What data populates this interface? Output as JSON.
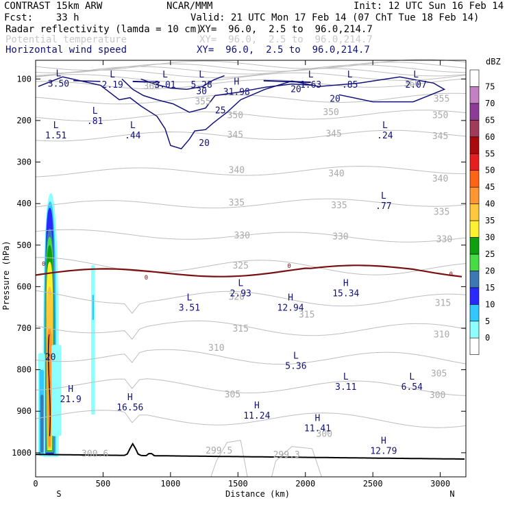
{
  "header": {
    "title_left": "CONTRAST 15km ARW",
    "title_center": "NCAR/MMM",
    "init": "Init: 12 UTC Sun 16 Feb 14",
    "fcst": "Fcst:    33 h",
    "valid": "Valid: 21 UTC Mon 17 Feb 14 (07 ChT Tue 18 Feb 14)",
    "fields": [
      {
        "name": "Radar reflectivity (lamda = 10 cm)",
        "xy": "XY=  96.0,  2.5 to  96.0,214.7",
        "color": "#000000"
      },
      {
        "name": "Potential temperature",
        "xy": "XY=  96.0,  2.5 to  96.0,214.7",
        "color": "#c8c8c8"
      },
      {
        "name": "Horizontal wind speed",
        "xy": "XY=  96.0,  2.5 to  96.0,214.7",
        "color": "#10107a"
      }
    ]
  },
  "chart_data": {
    "type": "cross-section",
    "xlabel": "Distance (km)",
    "ylabel": "Pressure (hPa)",
    "xlim": [
      0,
      3190
    ],
    "ylim": [
      1058,
      55
    ],
    "x_ticks": [
      0,
      500,
      1000,
      1500,
      2000,
      2500,
      3000
    ],
    "y_ticks": [
      100,
      200,
      300,
      400,
      500,
      600,
      700,
      800,
      900,
      1000
    ],
    "end_labels": {
      "left": "S",
      "right": "N"
    },
    "colorbar": {
      "unit": "dBZ",
      "levels": [
        0,
        5,
        10,
        15,
        20,
        25,
        30,
        35,
        40,
        45,
        50,
        55,
        60,
        65,
        70,
        75
      ],
      "colors": [
        "#ffffff",
        "#8cffff",
        "#32c8ff",
        "#2828ff",
        "#3c78b4",
        "#46dc46",
        "#0fa00f",
        "#fff032",
        "#ffc83c",
        "#ff9632",
        "#ff6414",
        "#e61e1e",
        "#aa0a0a",
        "#a03c5a",
        "#8c3c96",
        "#c380c3",
        "#ffffff"
      ]
    },
    "theta_labels": [
      {
        "text": "360",
        "x": 2790,
        "p": 112
      },
      {
        "text": "360",
        "x": 860,
        "p": 118
      },
      {
        "text": "355",
        "x": 1240,
        "p": 155
      },
      {
        "text": "355",
        "x": 3010,
        "p": 148
      },
      {
        "text": "350",
        "x": 1480,
        "p": 188
      },
      {
        "text": "350",
        "x": 2190,
        "p": 180
      },
      {
        "text": "350",
        "x": 3000,
        "p": 188
      },
      {
        "text": "345",
        "x": 1480,
        "p": 235
      },
      {
        "text": "345",
        "x": 2210,
        "p": 232
      },
      {
        "text": "345",
        "x": 3000,
        "p": 238
      },
      {
        "text": "340",
        "x": 1490,
        "p": 320
      },
      {
        "text": "340",
        "x": 2230,
        "p": 328
      },
      {
        "text": "340",
        "x": 3000,
        "p": 340
      },
      {
        "text": "335",
        "x": 1490,
        "p": 398
      },
      {
        "text": "335",
        "x": 2250,
        "p": 405
      },
      {
        "text": "335",
        "x": 3010,
        "p": 420
      },
      {
        "text": "330",
        "x": 1530,
        "p": 477
      },
      {
        "text": "330",
        "x": 2260,
        "p": 480
      },
      {
        "text": "330",
        "x": 3030,
        "p": 486
      },
      {
        "text": "325",
        "x": 1520,
        "p": 550
      },
      {
        "text": "320",
        "x": 1490,
        "p": 625
      },
      {
        "text": "315",
        "x": 2010,
        "p": 668
      },
      {
        "text": "315",
        "x": 1520,
        "p": 702
      },
      {
        "text": "315",
        "x": 3020,
        "p": 640
      },
      {
        "text": "310",
        "x": 1340,
        "p": 748
      },
      {
        "text": "310",
        "x": 3010,
        "p": 716
      },
      {
        "text": "305",
        "x": 1460,
        "p": 860
      },
      {
        "text": "305",
        "x": 2990,
        "p": 810
      },
      {
        "text": "300",
        "x": 2980,
        "p": 862
      },
      {
        "text": "300",
        "x": 2140,
        "p": 955
      },
      {
        "text": "300.6",
        "x": 440,
        "p": 1003
      },
      {
        "text": "299.5",
        "x": 1360,
        "p": 995
      },
      {
        "text": "299.3",
        "x": 1860,
        "p": 1005
      }
    ],
    "wind_labels": [
      {
        "text": "30",
        "x": 1230,
        "p": 130
      },
      {
        "text": "25",
        "x": 1370,
        "p": 176
      },
      {
        "text": "20",
        "x": 1250,
        "p": 255
      },
      {
        "text": "20",
        "x": 1930,
        "p": 125
      },
      {
        "text": "20",
        "x": 2220,
        "p": 148
      },
      {
        "text": "20",
        "x": 110,
        "p": 770
      }
    ],
    "zero_dbz_labels": [
      {
        "text": "0",
        "x": 60,
        "p": 545
      },
      {
        "text": "0",
        "x": 820,
        "p": 578
      },
      {
        "text": "0",
        "x": 1880,
        "p": 550
      },
      {
        "text": "0",
        "x": 3080,
        "p": 570
      }
    ],
    "extrema": [
      {
        "type": "L",
        "value": "3.50",
        "x": 170,
        "p": 100
      },
      {
        "type": "L",
        "value": "2.19",
        "x": 570,
        "p": 103
      },
      {
        "type": "L",
        "value": "3.01",
        "x": 960,
        "p": 103
      },
      {
        "type": "L",
        "value": "5.28",
        "x": 1230,
        "p": 103
      },
      {
        "type": "H",
        "value": "31.98",
        "x": 1490,
        "p": 120
      },
      {
        "type": "L",
        "value": "1.63",
        "x": 2040,
        "p": 103
      },
      {
        "type": "L",
        "value": ".85",
        "x": 2330,
        "p": 103
      },
      {
        "type": "L",
        "value": "2.07",
        "x": 2820,
        "p": 103
      },
      {
        "type": "L",
        "value": "1.51",
        "x": 150,
        "p": 225
      },
      {
        "type": "L",
        "value": ".81",
        "x": 440,
        "p": 190
      },
      {
        "type": "L",
        "value": ".44",
        "x": 720,
        "p": 225
      },
      {
        "type": "L",
        "value": ".24",
        "x": 2590,
        "p": 225
      },
      {
        "type": "L",
        "value": ".77",
        "x": 2580,
        "p": 395
      },
      {
        "type": "L",
        "value": "2.93",
        "x": 1520,
        "p": 605
      },
      {
        "type": "H",
        "value": "15.34",
        "x": 2300,
        "p": 605
      },
      {
        "type": "L",
        "value": "3.51",
        "x": 1140,
        "p": 640
      },
      {
        "type": "H",
        "value": "12.94",
        "x": 1890,
        "p": 640
      },
      {
        "type": "L",
        "value": "5.36",
        "x": 1930,
        "p": 780
      },
      {
        "type": "L",
        "value": "3.11",
        "x": 2300,
        "p": 830
      },
      {
        "type": "L",
        "value": "6.54",
        "x": 2790,
        "p": 830
      },
      {
        "type": "H",
        "value": "21.9",
        "x": 260,
        "p": 860
      },
      {
        "type": "H",
        "value": "16.56",
        "x": 700,
        "p": 880
      },
      {
        "type": "H",
        "value": "11.24",
        "x": 1640,
        "p": 900
      },
      {
        "type": "H",
        "value": "11.41",
        "x": 2090,
        "p": 930
      },
      {
        "type": "H",
        "value": "12.79",
        "x": 2580,
        "p": 985
      }
    ]
  }
}
